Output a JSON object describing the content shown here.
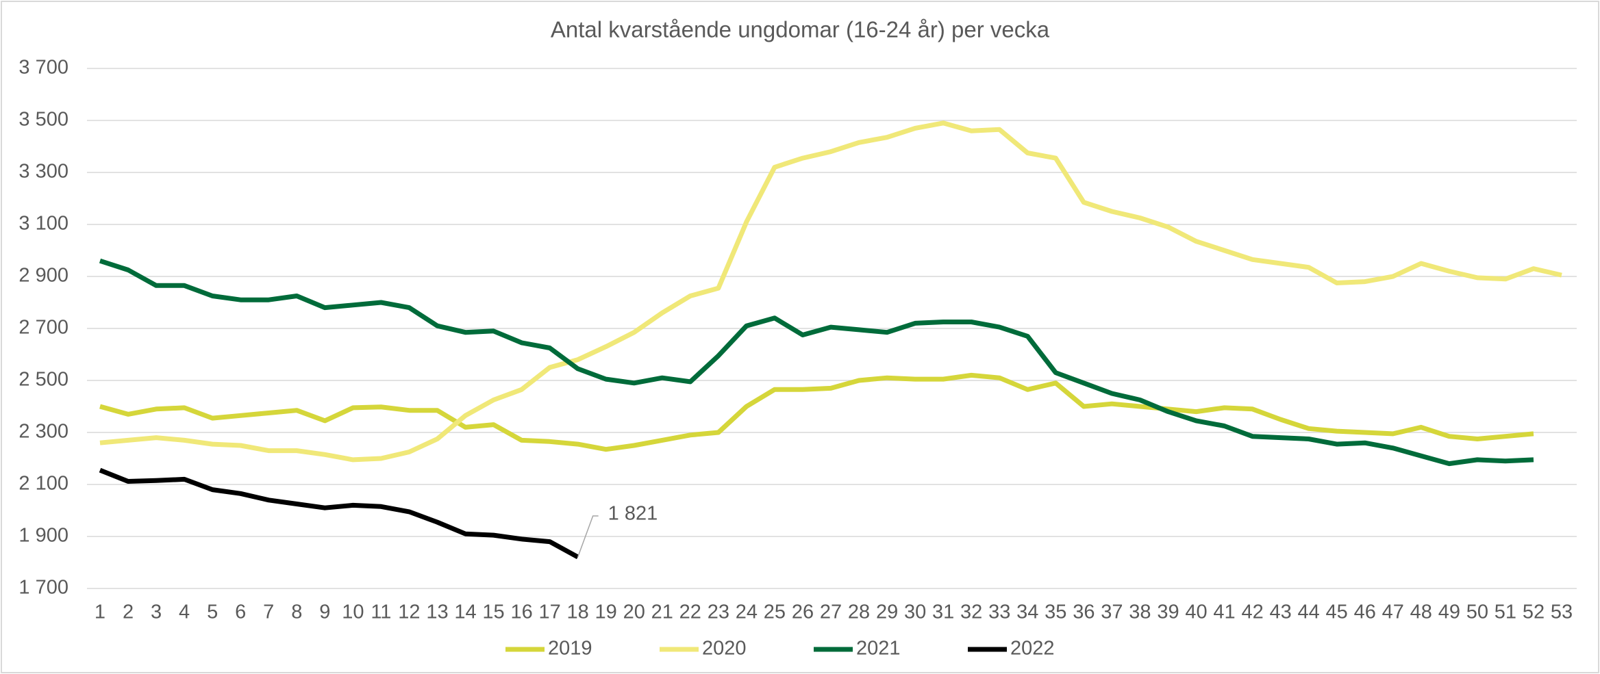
{
  "chart_data": {
    "type": "line",
    "title": "Antal kvarstående ungdomar (16-24 år) per vecka",
    "categories": [
      "1",
      "2",
      "3",
      "4",
      "5",
      "6",
      "7",
      "8",
      "9",
      "10",
      "11",
      "12",
      "13",
      "14",
      "15",
      "16",
      "17",
      "18",
      "19",
      "20",
      "21",
      "22",
      "23",
      "24",
      "25",
      "26",
      "27",
      "28",
      "29",
      "30",
      "31",
      "32",
      "33",
      "34",
      "35",
      "36",
      "37",
      "38",
      "39",
      "40",
      "41",
      "42",
      "43",
      "44",
      "45",
      "46",
      "47",
      "48",
      "49",
      "50",
      "51",
      "52",
      "53"
    ],
    "series": [
      {
        "name": "2019",
        "color": "#d5d63a",
        "values": [
          2400,
          2370,
          2390,
          2395,
          2355,
          2365,
          2375,
          2385,
          2345,
          2395,
          2398,
          2385,
          2385,
          2320,
          2330,
          2270,
          2265,
          2255,
          2235,
          2250,
          2270,
          2290,
          2300,
          2400,
          2465,
          2465,
          2470,
          2500,
          2510,
          2505,
          2505,
          2520,
          2510,
          2465,
          2490,
          2400,
          2410,
          2400,
          2390,
          2380,
          2395,
          2390,
          2350,
          2315,
          2305,
          2300,
          2295,
          2320,
          2285,
          2275,
          2285,
          2295,
          null
        ]
      },
      {
        "name": "2020",
        "color": "#f0e878",
        "values": [
          2260,
          2270,
          2280,
          2270,
          2255,
          2250,
          2230,
          2230,
          2215,
          2195,
          2200,
          2225,
          2275,
          2365,
          2425,
          2465,
          2550,
          2580,
          2630,
          2685,
          2760,
          2825,
          2855,
          3110,
          3320,
          3355,
          3380,
          3415,
          3435,
          3470,
          3490,
          3460,
          3465,
          3375,
          3355,
          3185,
          3150,
          3125,
          3090,
          3035,
          3000,
          2965,
          2950,
          2935,
          2875,
          2880,
          2900,
          2950,
          2920,
          2895,
          2890,
          2930,
          2905
        ]
      },
      {
        "name": "2021",
        "color": "#006b3a",
        "values": [
          2960,
          2925,
          2865,
          2865,
          2825,
          2810,
          2810,
          2825,
          2780,
          2790,
          2800,
          2780,
          2710,
          2685,
          2690,
          2645,
          2625,
          2545,
          2505,
          2490,
          2510,
          2495,
          2595,
          2710,
          2740,
          2675,
          2705,
          2695,
          2685,
          2720,
          2725,
          2725,
          2705,
          2670,
          2530,
          2490,
          2450,
          2425,
          2380,
          2345,
          2325,
          2285,
          2280,
          2275,
          2255,
          2260,
          2240,
          2210,
          2180,
          2195,
          2190,
          2195,
          null
        ]
      },
      {
        "name": "2022",
        "color": "#000000",
        "values": [
          2155,
          2112,
          2115,
          2120,
          2080,
          2065,
          2040,
          2025,
          2010,
          2020,
          2015,
          1995,
          1955,
          1910,
          1905,
          1890,
          1880,
          1821,
          null,
          null,
          null,
          null,
          null,
          null,
          null,
          null,
          null,
          null,
          null,
          null,
          null,
          null,
          null,
          null,
          null,
          null,
          null,
          null,
          null,
          null,
          null,
          null,
          null,
          null,
          null,
          null,
          null,
          null,
          null,
          null,
          null,
          null,
          null
        ],
        "value_labels": [
          null,
          null,
          null,
          null,
          null,
          null,
          null,
          null,
          null,
          null,
          null,
          null,
          null,
          null,
          null,
          null,
          null,
          "1 821",
          null,
          null,
          null,
          null,
          null,
          null,
          null,
          null,
          null,
          null,
          null,
          null,
          null,
          null,
          null,
          null,
          null,
          null,
          null,
          null,
          null,
          null,
          null,
          null,
          null,
          null,
          null,
          null,
          null,
          null,
          null,
          null,
          null,
          null,
          null
        ]
      }
    ],
    "ylim": [
      1700,
      3700
    ],
    "yticks": [
      {
        "value": 1700,
        "label": "1 700"
      },
      {
        "value": 1900,
        "label": "1 900"
      },
      {
        "value": 2100,
        "label": "2 100"
      },
      {
        "value": 2300,
        "label": "2 300"
      },
      {
        "value": 2500,
        "label": "2 500"
      },
      {
        "value": 2700,
        "label": "2 700"
      },
      {
        "value": 2900,
        "label": "2 900"
      },
      {
        "value": 3100,
        "label": "3 100"
      },
      {
        "value": 3300,
        "label": "3 300"
      },
      {
        "value": 3500,
        "label": "3 500"
      },
      {
        "value": 3700,
        "label": "3 700"
      }
    ],
    "grid": true,
    "legend": "bottom"
  }
}
